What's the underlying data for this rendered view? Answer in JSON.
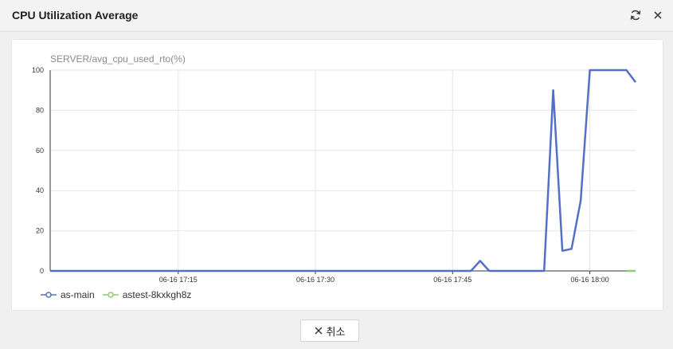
{
  "dialog": {
    "title": "CPU Utilization Average",
    "refresh_icon": "refresh-icon",
    "close_icon": "close-icon"
  },
  "chart_data": {
    "type": "line",
    "title": "SERVER/avg_cpu_used_rto(%)",
    "xlabel": "",
    "ylabel": "",
    "ylim": [
      0,
      100
    ],
    "y_ticks": [
      "100",
      "80",
      "60",
      "40",
      "20",
      "0"
    ],
    "x_ticks": [
      "06-16 17:15",
      "06-16 17:30",
      "06-16 17:45",
      "06-16 18:00"
    ],
    "grid": true,
    "legend_position": "bottom-left",
    "series": [
      {
        "name": "as-main",
        "color": "#5470c6",
        "points": [
          [
            "06-16 17:01",
            0
          ],
          [
            "06-16 17:47",
            0
          ],
          [
            "06-16 17:48",
            5
          ],
          [
            "06-16 17:49",
            0
          ],
          [
            "06-16 17:55",
            0
          ],
          [
            "06-16 17:56",
            90
          ],
          [
            "06-16 17:57",
            10
          ],
          [
            "06-16 17:58",
            11
          ],
          [
            "06-16 17:59",
            35
          ],
          [
            "06-16 18:00",
            100
          ],
          [
            "06-16 18:04",
            100
          ],
          [
            "06-16 18:05",
            94
          ]
        ]
      },
      {
        "name": "astest-8kxkgh8z",
        "color": "#91cc75",
        "points": [
          [
            "06-16 18:04",
            0
          ],
          [
            "06-16 18:05",
            0
          ]
        ]
      }
    ]
  },
  "footer": {
    "cancel_label": "취소"
  }
}
